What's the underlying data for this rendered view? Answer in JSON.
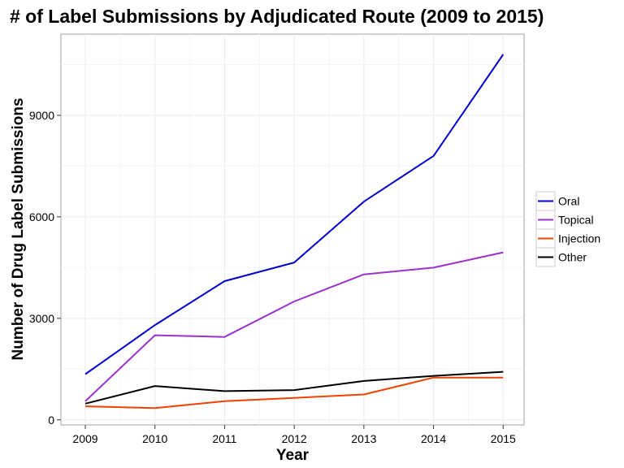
{
  "chart_data": {
    "type": "line",
    "title": "# of Label Submissions by Adjudicated Route (2009 to 2015)",
    "xlabel": "Year",
    "ylabel": "Number of Drug Label Submissions",
    "x": [
      2009,
      2010,
      2011,
      2012,
      2013,
      2014,
      2015
    ],
    "xlim": [
      2008.65,
      2015.3
    ],
    "ylim": [
      -150,
      11400
    ],
    "yticks": [
      0,
      3000,
      6000,
      9000
    ],
    "grid": true,
    "legend_position": "right",
    "series": [
      {
        "name": "Oral",
        "color": "#0000cc",
        "values": [
          1350,
          2800,
          4100,
          4650,
          6450,
          7800,
          10800
        ]
      },
      {
        "name": "Topical",
        "color": "#9933cc",
        "values": [
          550,
          2500,
          2450,
          3500,
          4300,
          4500,
          4950
        ]
      },
      {
        "name": "Injection",
        "color": "#ee4400",
        "values": [
          400,
          350,
          550,
          650,
          750,
          1250,
          1250
        ]
      },
      {
        "name": "Other",
        "color": "#000000",
        "values": [
          480,
          1000,
          850,
          880,
          1150,
          1300,
          1420
        ]
      }
    ]
  }
}
